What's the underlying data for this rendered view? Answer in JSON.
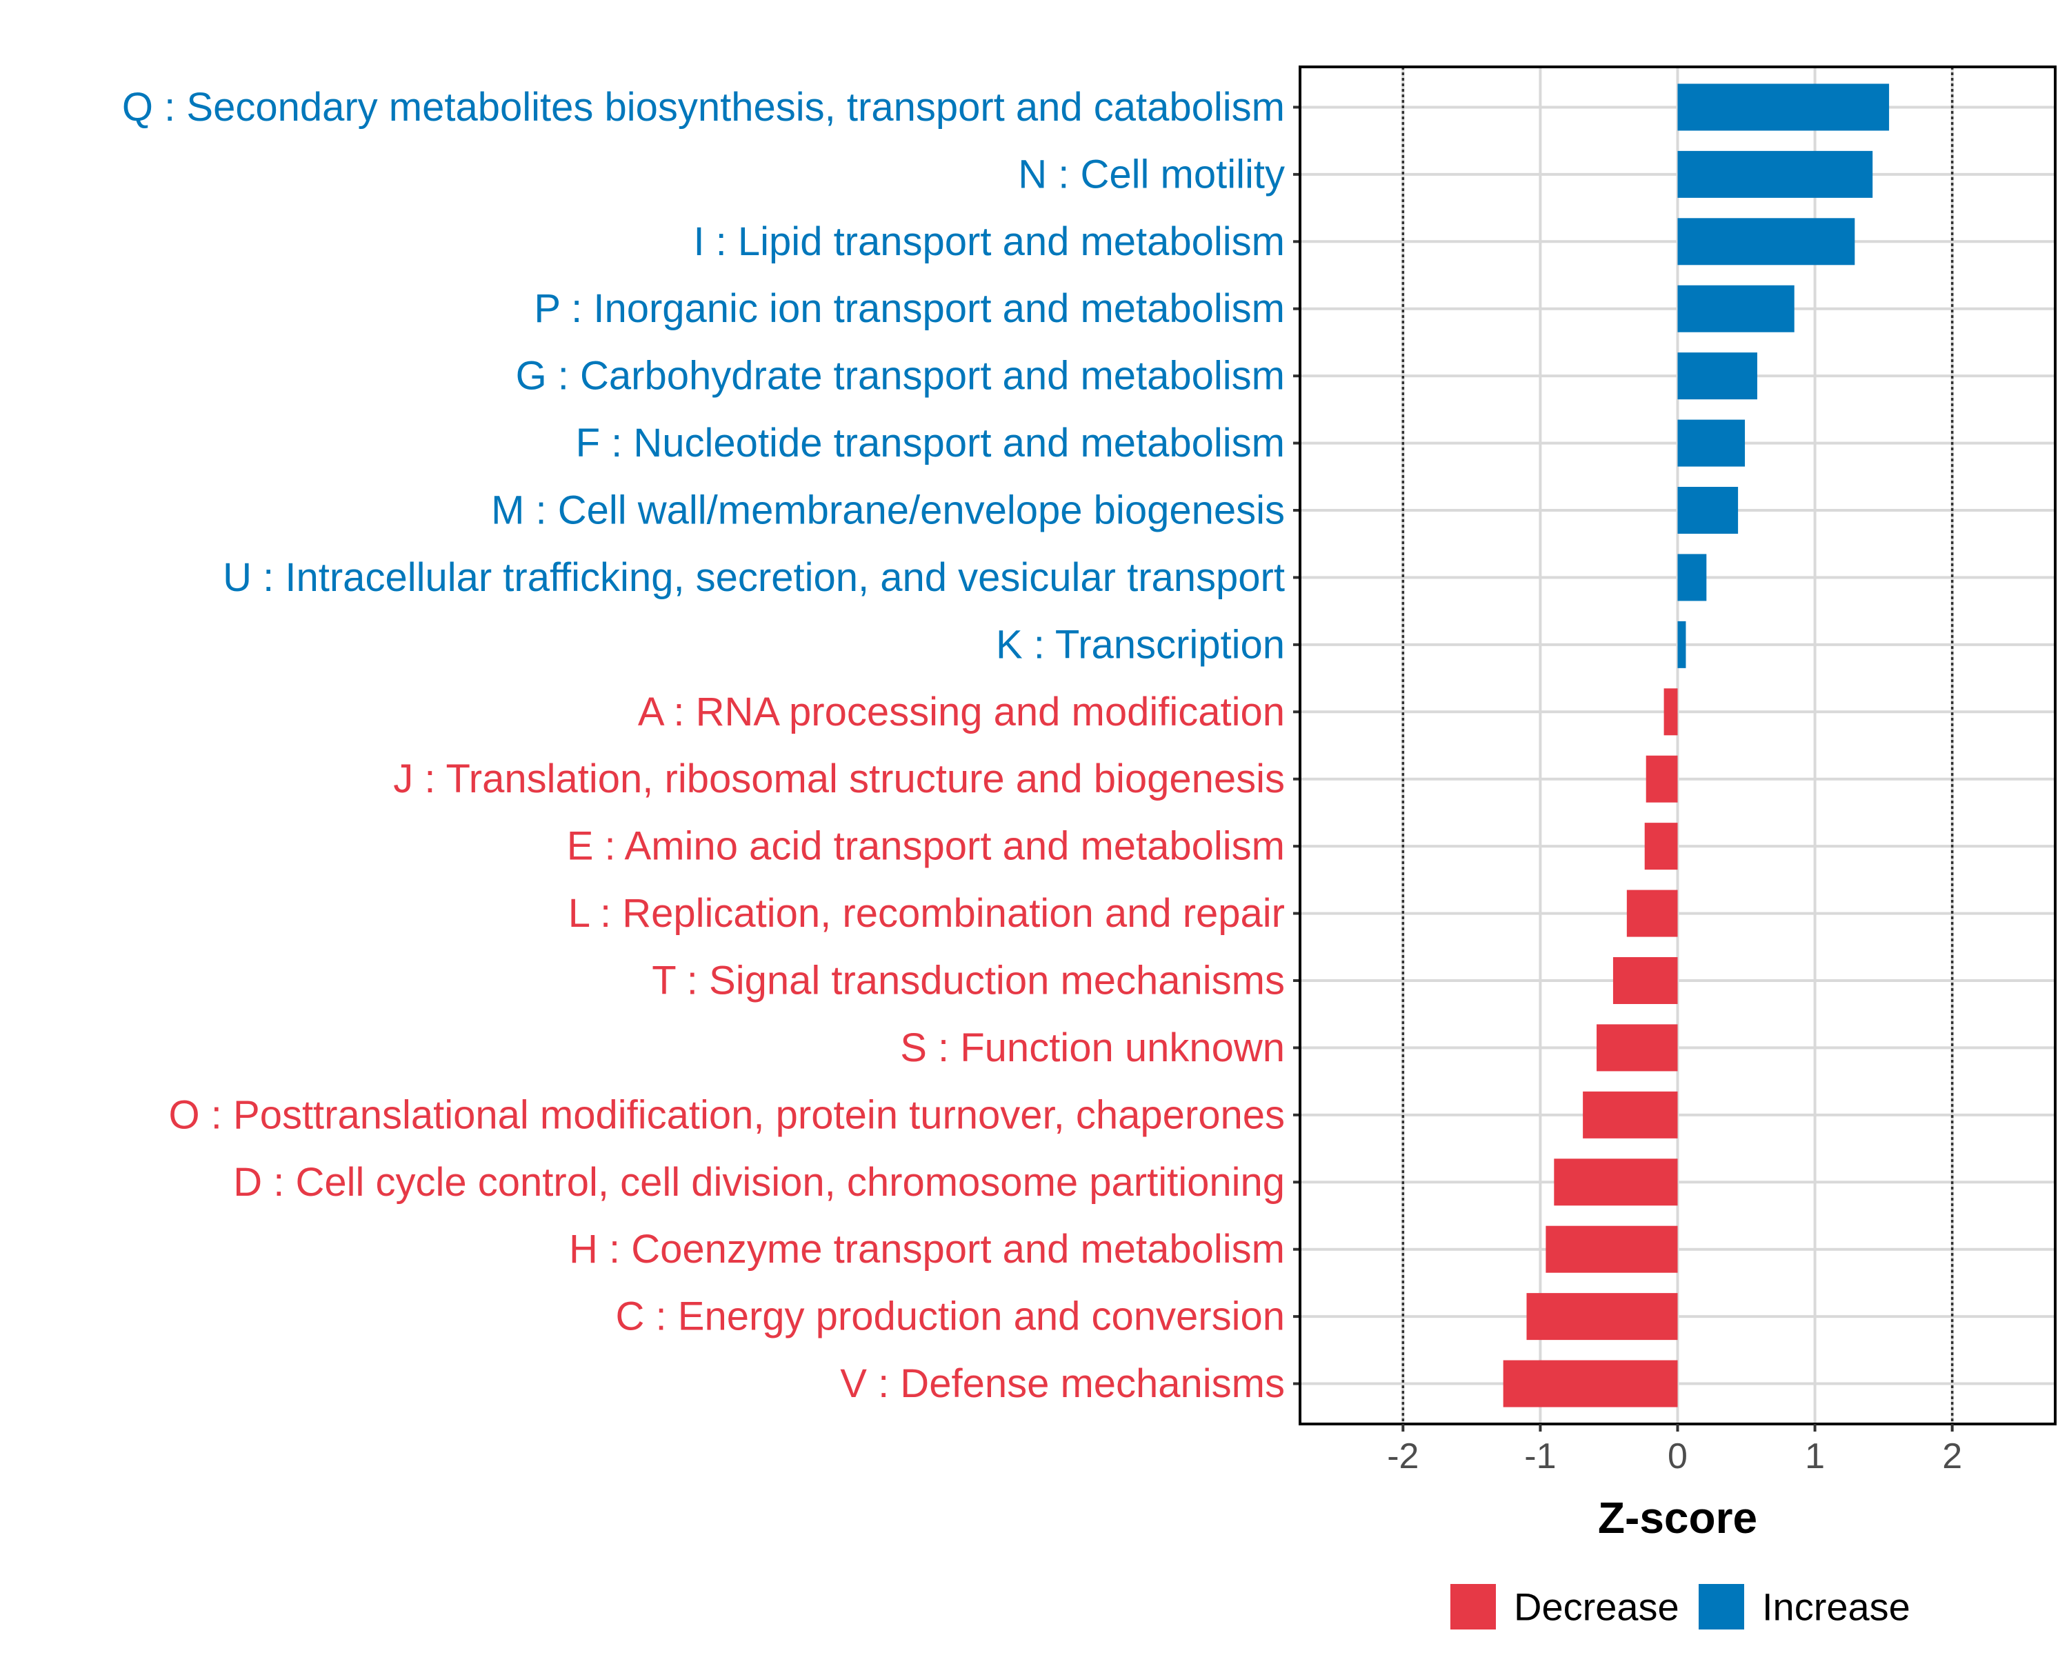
{
  "chart_data": {
    "type": "bar",
    "orientation": "horizontal",
    "title": "",
    "xlabel": "Z-score",
    "ylabel": "",
    "xlim": [
      -2.75,
      2.75
    ],
    "xticks": [
      -2,
      -1,
      0,
      1,
      2
    ],
    "xtick_labels": [
      "-2",
      "-1",
      "0",
      "1",
      "2"
    ],
    "reference_lines": [
      -2,
      2
    ],
    "grid": true,
    "legend_position": "bottom",
    "colors": {
      "Decrease": "#e63946",
      "Increase": "#0077bb"
    },
    "legend": [
      {
        "name": "Decrease",
        "color": "#e63946"
      },
      {
        "name": "Increase",
        "color": "#0077bb"
      }
    ],
    "categories": [
      "Q : Secondary metabolites biosynthesis, transport and catabolism",
      "N : Cell motility",
      "I : Lipid transport and metabolism",
      "P : Inorganic ion transport and metabolism",
      "G : Carbohydrate transport and metabolism",
      "F : Nucleotide transport and metabolism",
      "M : Cell wall/membrane/envelope biogenesis",
      "U : Intracellular trafficking, secretion, and vesicular transport",
      "K : Transcription",
      "A : RNA processing and modification",
      "J : Translation, ribosomal structure and biogenesis",
      "E : Amino acid transport and metabolism",
      "L : Replication, recombination and repair",
      "T : Signal transduction mechanisms",
      "S : Function unknown",
      "O : Posttranslational modification, protein turnover, chaperones",
      "D : Cell cycle control, cell division, chromosome partitioning",
      "H : Coenzyme transport and metabolism",
      "C : Energy production and conversion",
      "V : Defense mechanisms"
    ],
    "values": [
      1.54,
      1.42,
      1.29,
      0.85,
      0.58,
      0.49,
      0.44,
      0.21,
      0.06,
      -0.1,
      -0.23,
      -0.24,
      -0.37,
      -0.47,
      -0.59,
      -0.69,
      -0.9,
      -0.96,
      -1.1,
      -1.27
    ],
    "groups": [
      "Increase",
      "Increase",
      "Increase",
      "Increase",
      "Increase",
      "Increase",
      "Increase",
      "Increase",
      "Increase",
      "Decrease",
      "Decrease",
      "Decrease",
      "Decrease",
      "Decrease",
      "Decrease",
      "Decrease",
      "Decrease",
      "Decrease",
      "Decrease",
      "Decrease"
    ]
  }
}
